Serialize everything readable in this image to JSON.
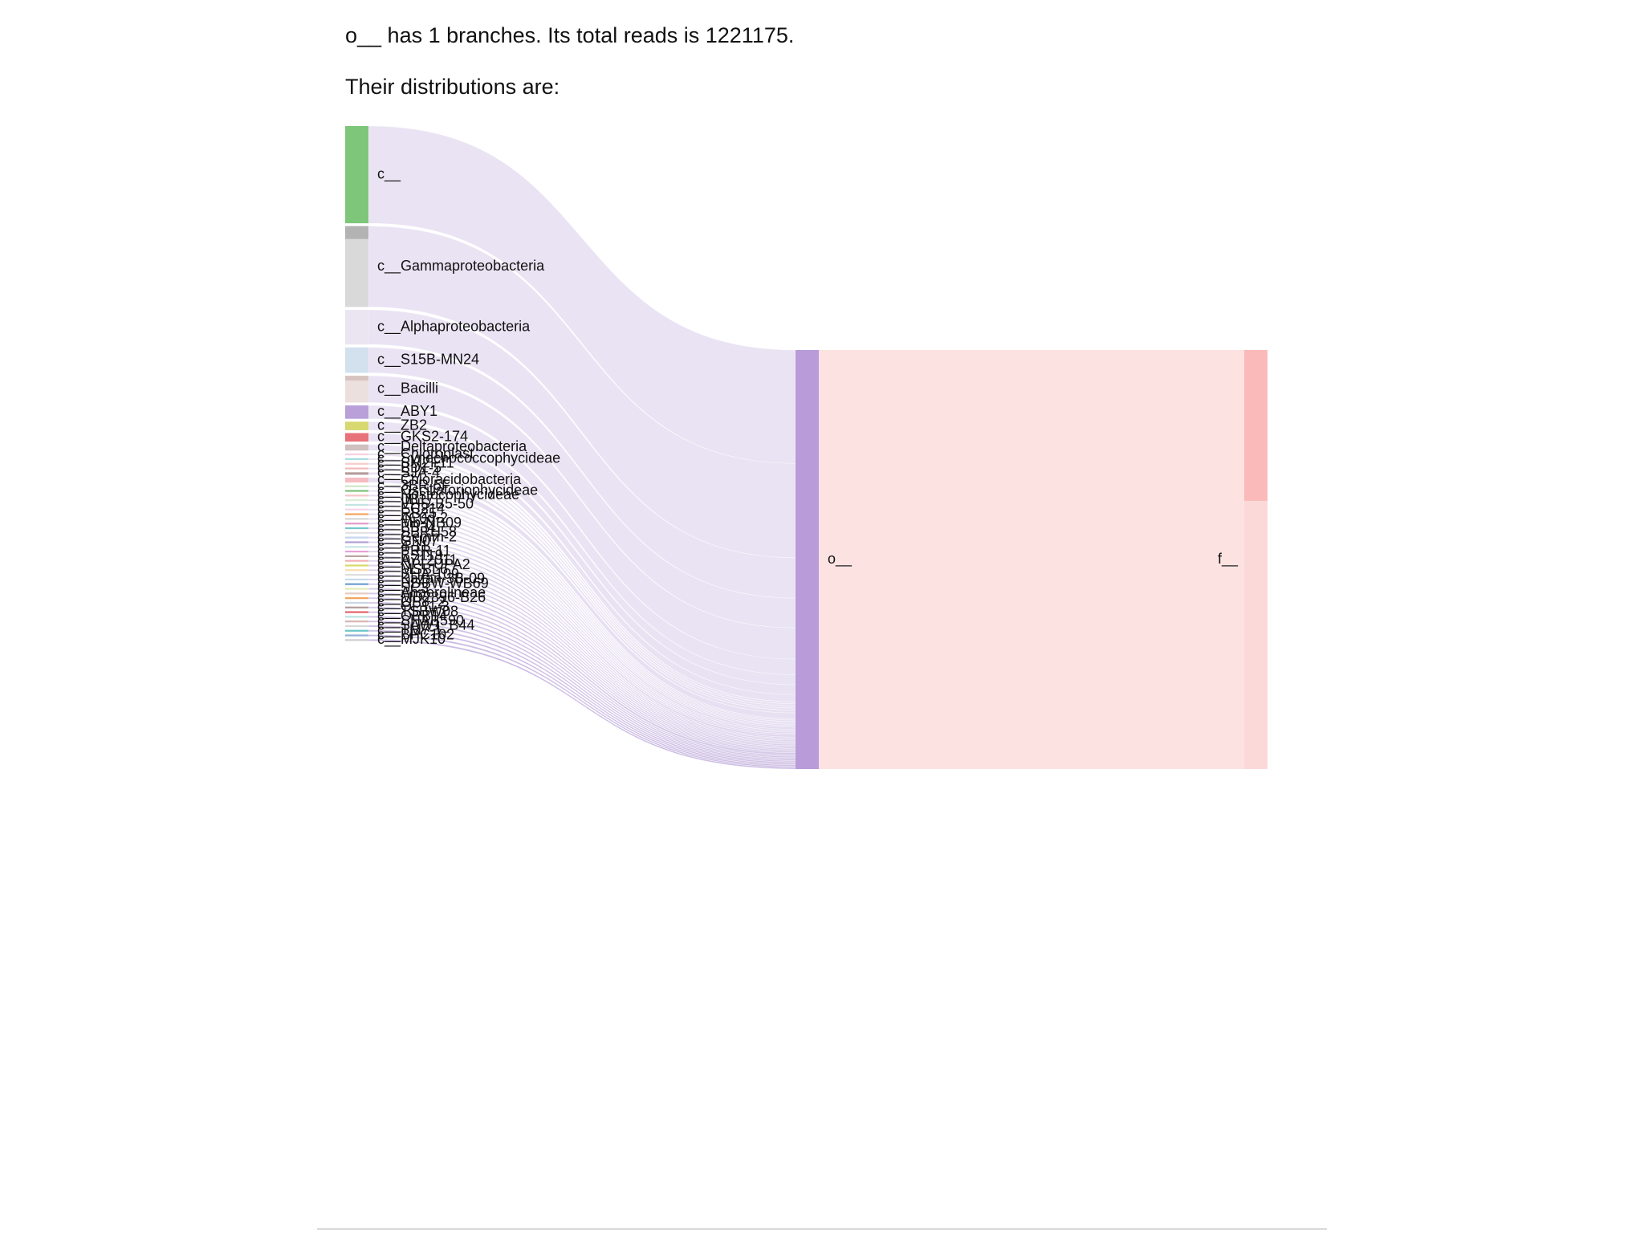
{
  "summary": {
    "text": "o__ has 1 branches. Its total reads is 1221175.",
    "distribution_heading": "Their distributions are:"
  },
  "chart_data": {
    "type": "sankey",
    "total_reads": 1221175,
    "colors": {
      "link": "#c7b6e0",
      "target_node": "#b89bd8",
      "target_link": "#fde2e2",
      "terminal_node": "#fcd9d9",
      "terminal_node_top": "#fbbaba"
    },
    "source_nodes": [
      {
        "name": "c__",
        "color": "#7ec77a",
        "value": 160
      },
      {
        "name": "c__Gammaproteobacteria",
        "color": "#d9d9d9",
        "top_color": "#b3b3b3",
        "value": 133
      },
      {
        "name": "c__Alphaproteobacteria",
        "color": "#ebe5f2",
        "value": 57
      },
      {
        "name": "c__S15B-MN24",
        "color": "#d3e1ef",
        "value": 42
      },
      {
        "name": "c__Bacilli",
        "color": "#ece0df",
        "top_color": "#d7c4c1",
        "value": 44
      },
      {
        "name": "c__ABY1",
        "color": "#b9a0d8",
        "value": 22
      },
      {
        "name": "c__ZB2",
        "color": "#d7d86f",
        "value": 14
      },
      {
        "name": "c__GKS2-174",
        "color": "#e8727a",
        "value": 14
      },
      {
        "name": "c__Deltaproteobacteria",
        "color": "#d0c0c0",
        "value": 10
      },
      {
        "name": "c__Chloroplast",
        "color": "#f6cfe0",
        "value": 3
      },
      {
        "name": "c__Synechococcophycideae",
        "color": "#a9dde0",
        "value": 3
      },
      {
        "name": "c__SM2F11",
        "color": "#f8cbcb",
        "value": 3
      },
      {
        "name": "c__BD1-5",
        "color": "#f3bcbc",
        "value": 3
      },
      {
        "name": "c__SJA-4",
        "color": "#b39a9a",
        "value": 4
      },
      {
        "name": "c__Chloracidobacteria",
        "color": "#f6bcc3",
        "value": 8
      },
      {
        "name": "c__3BR-5F",
        "color": "#cde8c8",
        "value": 2
      },
      {
        "name": "c__Oscillatoriophycideae",
        "color": "#7fc17d",
        "value": 2
      },
      {
        "name": "c__Nostocophycideae",
        "color": "#f6c7c7",
        "value": 2
      },
      {
        "name": "c__IIB17",
        "color": "#dbeed8",
        "value": 2
      },
      {
        "name": "c__VHS-B5-50",
        "color": "#c2e4e2",
        "value": 2
      },
      {
        "name": "c__EC214",
        "color": "#f7d3ec",
        "value": 2
      },
      {
        "name": "c__RB25",
        "color": "#f3a663",
        "value": 3
      },
      {
        "name": "c__4C0d-2",
        "color": "#d6d6d6",
        "value": 2
      },
      {
        "name": "c__Mb-NB09",
        "color": "#e499cb",
        "value": 2
      },
      {
        "name": "c__BB34",
        "color": "#78c6cb",
        "value": 2
      },
      {
        "name": "c__SBRH58",
        "color": "#e2e2e2",
        "value": 2
      },
      {
        "name": "c__Gemm-2",
        "color": "#c6d6ec",
        "value": 3
      },
      {
        "name": "c__GN07",
        "color": "#b2a0d4",
        "value": 2
      },
      {
        "name": "c__4-11",
        "color": "#c8e6e4",
        "value": 2
      },
      {
        "name": "c__PRR-11",
        "color": "#e7a1d5",
        "value": 2
      },
      {
        "name": "c__BS119",
        "color": "#bba2a2",
        "value": 2
      },
      {
        "name": "c__A712011",
        "color": "#f2b1b1",
        "value": 2
      },
      {
        "name": "c__NPL-UPA2",
        "color": "#d9d96a",
        "value": 2
      },
      {
        "name": "c__MSBL6",
        "color": "#f6dfb0",
        "value": 2
      },
      {
        "name": "c__SHA-109",
        "color": "#dedede",
        "value": 2
      },
      {
        "name": "c__Kazan-3B-09",
        "color": "#cad9e8",
        "value": 2
      },
      {
        "name": "c__HDBW-WB69",
        "color": "#6e9ccf",
        "value": 2
      },
      {
        "name": "c__SC3",
        "color": "#e3eab9",
        "value": 2
      },
      {
        "name": "c__Anaerolineae",
        "color": "#e6cbc3",
        "value": 3
      },
      {
        "name": "c__MD2896-B26",
        "color": "#f3a35f",
        "value": 2
      },
      {
        "name": "c__OP8_2",
        "color": "#c9d6e6",
        "value": 2
      },
      {
        "name": "c__OP11-3",
        "color": "#b29b9b",
        "value": 2
      },
      {
        "name": "c__TSBW08",
        "color": "#e4626b",
        "value": 2
      },
      {
        "name": "c__OPB14",
        "color": "#bfe3df",
        "value": 2
      },
      {
        "name": "c__SHAB590",
        "color": "#d9b3b3",
        "value": 2
      },
      {
        "name": "c__SAW1_B44",
        "color": "#d8d8d8",
        "value": 2
      },
      {
        "name": "c__TM7-1",
        "color": "#69c5c9",
        "value": 2
      },
      {
        "name": "c__BPC102",
        "color": "#90b0d6",
        "value": 2
      },
      {
        "name": "c__MJK10",
        "color": "#cfcfcf",
        "value": 2
      }
    ],
    "target_node": {
      "name": "o__",
      "value": 1221175
    },
    "terminal_node": {
      "name": "f__",
      "value": 1221175
    }
  }
}
